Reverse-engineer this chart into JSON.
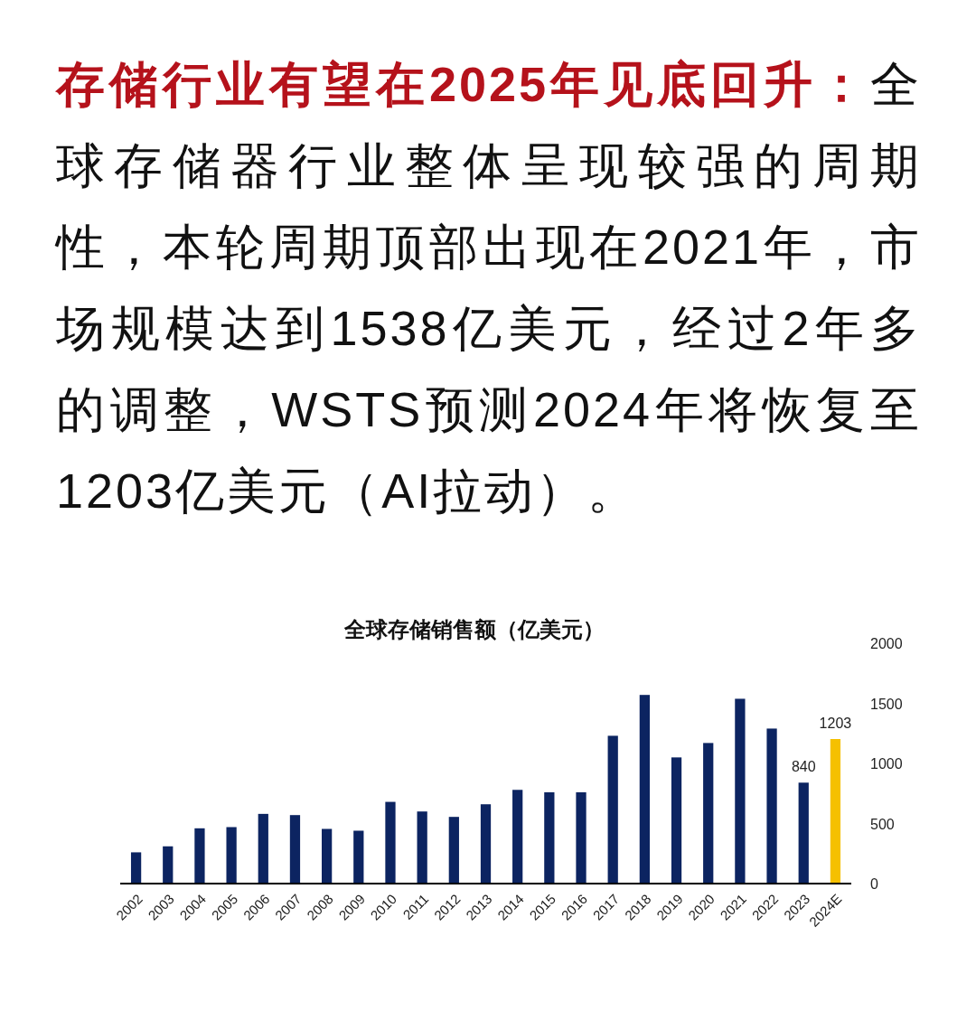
{
  "chart_data": {
    "type": "bar",
    "title": "全球存储销售额（亿美元）",
    "annotations": [
      "存储行业有望在2025年见底回升：",
      "全球存储器行业整体呈现较强的周期性，本轮周期顶部出现在2021年，市场规模达到1538亿美元，经过2年多的调整，WSTS预测2024年将恢复至1203亿美元（AI拉动）。"
    ],
    "categories": [
      "2002",
      "2003",
      "2004",
      "2005",
      "2006",
      "2007",
      "2008",
      "2009",
      "2010",
      "2011",
      "2012",
      "2013",
      "2014",
      "2015",
      "2016",
      "2017",
      "2018",
      "2019",
      "2020",
      "2021",
      "2022",
      "2023",
      "2024E"
    ],
    "values": [
      260,
      310,
      460,
      470,
      580,
      570,
      455,
      440,
      680,
      600,
      555,
      660,
      780,
      760,
      760,
      1230,
      1570,
      1050,
      1170,
      1538,
      1290,
      840,
      1203
    ],
    "colors": [
      "#0c2461",
      "#0c2461",
      "#0c2461",
      "#0c2461",
      "#0c2461",
      "#0c2461",
      "#0c2461",
      "#0c2461",
      "#0c2461",
      "#0c2461",
      "#0c2461",
      "#0c2461",
      "#0c2461",
      "#0c2461",
      "#0c2461",
      "#0c2461",
      "#0c2461",
      "#0c2461",
      "#0c2461",
      "#0c2461",
      "#0c2461",
      "#0c2461",
      "#f5c000"
    ],
    "value_labels": [
      null,
      null,
      null,
      null,
      null,
      null,
      null,
      null,
      null,
      null,
      null,
      null,
      null,
      null,
      null,
      null,
      null,
      null,
      null,
      null,
      null,
      "840",
      "1203"
    ],
    "ylim": [
      0,
      2000
    ],
    "yticks": [
      0,
      500,
      1000,
      1500,
      2000
    ],
    "grid": false
  }
}
